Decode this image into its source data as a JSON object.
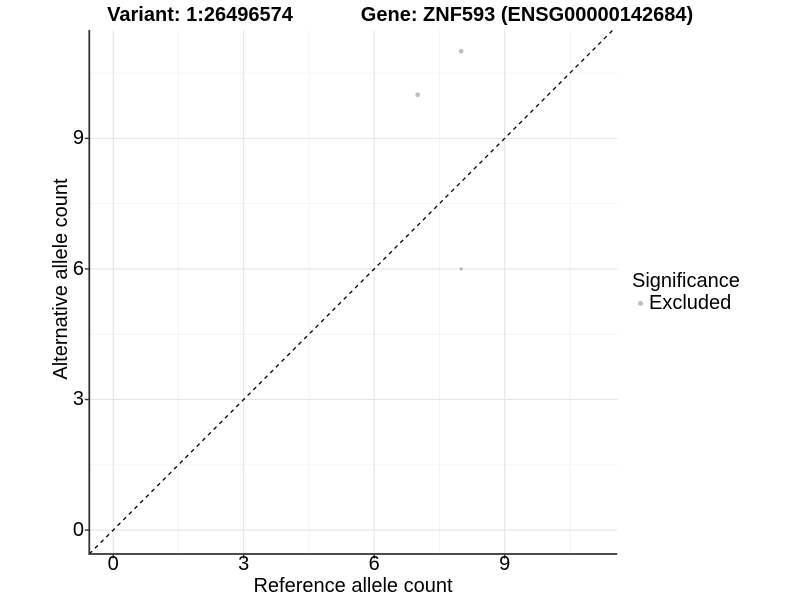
{
  "chart_data": {
    "type": "scatter",
    "title_left": "Variant: 1:26496574",
    "title_right": "Gene: ZNF593 (ENSG00000142684)",
    "xlabel": "Reference allele count",
    "ylabel": "Alternative allele count",
    "xlim": [
      -0.55,
      11.59
    ],
    "ylim": [
      -0.55,
      11.49
    ],
    "x_ticks": [
      0,
      3,
      6,
      9
    ],
    "y_ticks": [
      0,
      3,
      6,
      9
    ],
    "x_minor_ticks": [
      1.5,
      4.5,
      7.5,
      10.5
    ],
    "y_minor_ticks": [
      1.5,
      4.5,
      7.5,
      10.5
    ],
    "grid": "major+minor",
    "legend_position": "right",
    "reference_line": {
      "type": "identity",
      "slope": 1,
      "intercept": 0,
      "style": "dashed"
    },
    "series": [
      {
        "name": "Excluded",
        "color": "#bebebe",
        "points": [
          {
            "x": 7,
            "y": 10,
            "r": 2.3
          },
          {
            "x": 8,
            "y": 11,
            "r": 2.4
          },
          {
            "x": 8,
            "y": 6,
            "r": 1.7
          }
        ]
      }
    ],
    "legend": {
      "title": "Significance",
      "items": [
        {
          "label": "Excluded",
          "color": "#bebebe"
        }
      ]
    }
  },
  "colors": {
    "background": "#ffffff",
    "text": "#000000",
    "axis": "#333333",
    "grid_major": "#e4e4e4",
    "grid_minor": "#f2f2f2",
    "reference_line": "#000000"
  }
}
